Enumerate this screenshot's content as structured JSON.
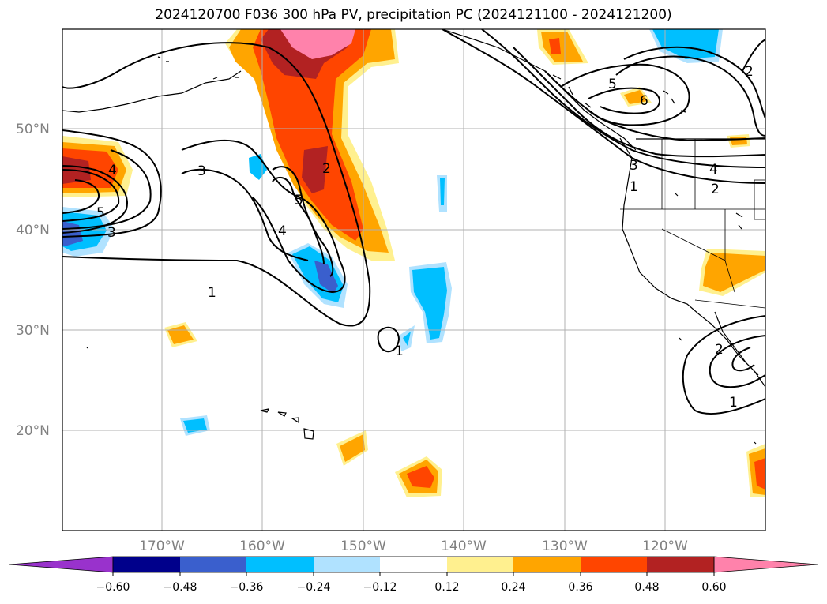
{
  "title": "2024120700 F036 300 hPa PV, precipitation PC (2024121100 - 2024121200)",
  "map": {
    "lat_range": [
      10,
      60
    ],
    "lon_range": [
      -180,
      -110
    ],
    "lat_labels": [
      "20°N",
      "30°N",
      "40°N",
      "50°N"
    ],
    "lon_labels": [
      "170°W",
      "160°W",
      "150°W",
      "140°W",
      "130°W",
      "120°W"
    ],
    "grid": true
  },
  "colorbar": {
    "extend": "both",
    "tick_labels": [
      "−0.60",
      "−0.48",
      "−0.36",
      "−0.24",
      "−0.12",
      "0.12",
      "0.24",
      "0.36",
      "0.48",
      "0.60"
    ],
    "colors": [
      "#9932cc",
      "#00008b",
      "#3a5fcd",
      "#00bfff",
      "#b0e2ff",
      "#ffffff",
      "#fff08f",
      "#ffa500",
      "#ff4500",
      "#b22222",
      "#ff82ab"
    ]
  },
  "contour_labels": [
    "1",
    "2",
    "3",
    "4",
    "5",
    "6"
  ]
}
